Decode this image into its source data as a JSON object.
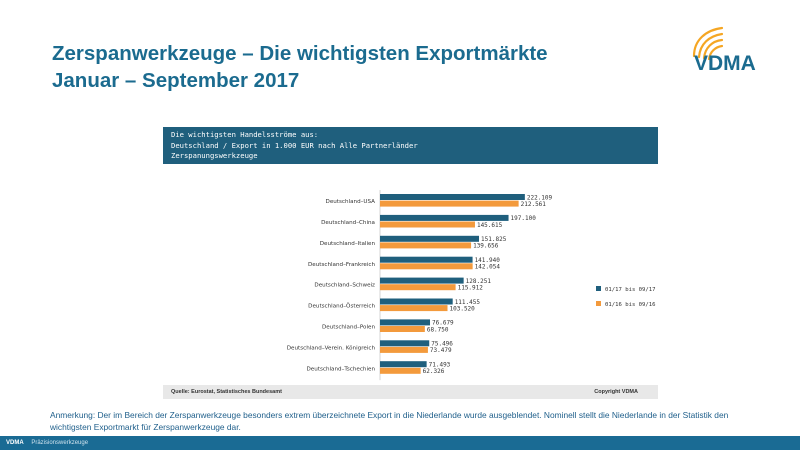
{
  "page": {
    "title_line1": "Zerspanwerkzeuge – Die wichtigsten Exportmärkte",
    "title_line2": "Januar – September 2017"
  },
  "logo": {
    "text": "VDMA"
  },
  "chart_header": {
    "line1": "Die wichtigsten Handelsströme aus:",
    "line2": "Deutschland / Export in 1.000 EUR nach Alle Partnerländer",
    "line3": "Zerspanungswerkzeuge"
  },
  "chart_data": {
    "type": "bar",
    "orientation": "horizontal",
    "title": "Die wichtigsten Handelsströme aus: Deutschland / Export in 1.000 EUR nach Alle Partnerländer – Zerspanungswerkzeuge",
    "categories": [
      "Deutschland–USA",
      "Deutschland–China",
      "Deutschland–Italien",
      "Deutschland–Frankreich",
      "Deutschland–Schweiz",
      "Deutschland–Österreich",
      "Deutschland–Polen",
      "Deutschland–Verein. Königreich",
      "Deutschland–Tschechien"
    ],
    "series": [
      {
        "name": "01/17 bis 09/17",
        "color": "#1f5f7d",
        "values": [
          222109,
          197100,
          151825,
          141940,
          128251,
          111455,
          76679,
          75496,
          71493
        ],
        "labels": [
          "222.109",
          "197.100",
          "151.825",
          "141.940",
          "128.251",
          "111.455",
          "76.679",
          "75.496",
          "71.493"
        ]
      },
      {
        "name": "01/16 bis 09/16",
        "color": "#f39a3c",
        "values": [
          212561,
          145615,
          139656,
          142054,
          115912,
          103520,
          68750,
          73479,
          62326
        ],
        "labels": [
          "212.561",
          "145.615",
          "139.656",
          "142.054",
          "115.912",
          "103.520",
          "68.750",
          "73.479",
          "62.326"
        ]
      }
    ],
    "xlim": [
      0,
      230000
    ],
    "xlabel": "",
    "ylabel": "",
    "legend_position": "right"
  },
  "source": {
    "left": "Quelle: Eurostat, Statistisches Bundesamt",
    "right": "Copyright VDMA"
  },
  "note": "Anmerkung: Der im Bereich der Zerspanwerkzeuge besonders extrem überzeichnete Export in die Niederlande wurde ausgeblendet. Nominell stellt die Niederlande in der Statistik den wichtigsten Exportmarkt für Zerspanwerkzeuge dar.",
  "footer": {
    "brand": "VDMA",
    "sub": "Präzisionswerkzeuge"
  },
  "colors": {
    "accent": "#1b6b8f",
    "logo_orange": "#f5a623"
  }
}
